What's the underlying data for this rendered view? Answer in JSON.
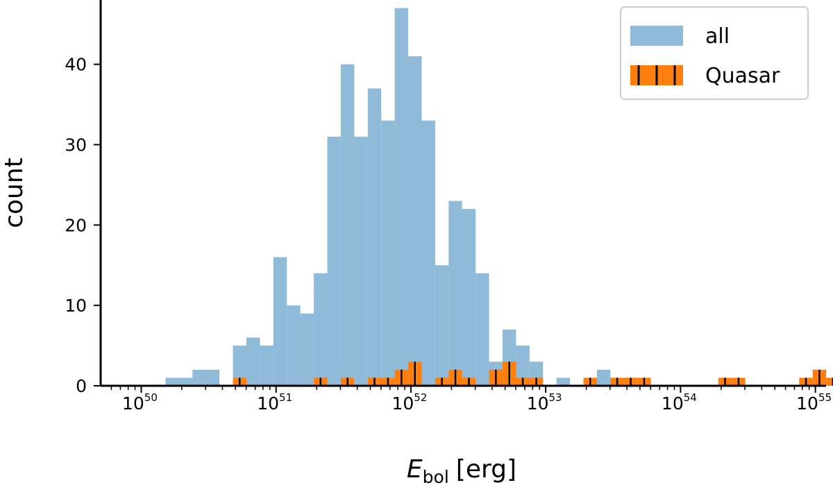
{
  "chart_data": {
    "type": "bar",
    "xscale": "log",
    "xlabel_main": "E",
    "xlabel_sub": "bol",
    "xlabel_unit": "[erg]",
    "ylabel": "count",
    "xlim": [
      5e+49,
      1.2e+55
    ],
    "ylim": [
      0,
      48
    ],
    "x_ticks": [
      {
        "base": "10",
        "exp": "50",
        "value": 1e+50
      },
      {
        "base": "10",
        "exp": "51",
        "value": 1e+51
      },
      {
        "base": "10",
        "exp": "52",
        "value": 1e+52
      },
      {
        "base": "10",
        "exp": "53",
        "value": 1e+53
      },
      {
        "base": "10",
        "exp": "54",
        "value": 1e+54
      },
      {
        "base": "10",
        "exp": "55",
        "value": 1e+55
      }
    ],
    "y_ticks": [
      "0",
      "10",
      "20",
      "30",
      "40"
    ],
    "legend_position": "top-right",
    "legend": [
      "all",
      "Quasar"
    ],
    "bin_log_edges": {
      "start": 50.18,
      "width": 0.1,
      "count": 50
    },
    "series": [
      {
        "name": "all",
        "color": "#8fbbd9",
        "values": [
          1,
          1,
          2,
          2,
          0,
          5,
          6,
          5,
          16,
          10,
          9,
          14,
          31,
          40,
          31,
          37,
          33,
          47,
          41,
          33,
          15,
          23,
          22,
          14,
          3,
          7,
          5,
          3,
          0,
          1,
          0,
          0,
          2,
          0,
          0,
          0,
          0,
          0,
          0,
          0,
          0,
          0,
          0,
          0,
          0,
          0,
          0,
          0,
          0,
          0
        ]
      },
      {
        "name": "Quasar",
        "color": "#ff7f0e",
        "hatch_color": "#000000",
        "values": [
          0,
          0,
          0,
          0,
          0,
          1,
          0,
          0,
          0,
          0,
          0,
          1,
          0,
          1,
          0,
          1,
          1,
          2,
          3,
          0,
          1,
          2,
          1,
          0,
          2,
          3,
          1,
          1,
          0,
          0,
          0,
          1,
          0,
          1,
          1,
          1,
          0,
          0,
          0,
          0,
          0,
          1,
          1,
          0,
          0,
          0,
          0,
          1,
          2,
          1
        ]
      }
    ]
  }
}
